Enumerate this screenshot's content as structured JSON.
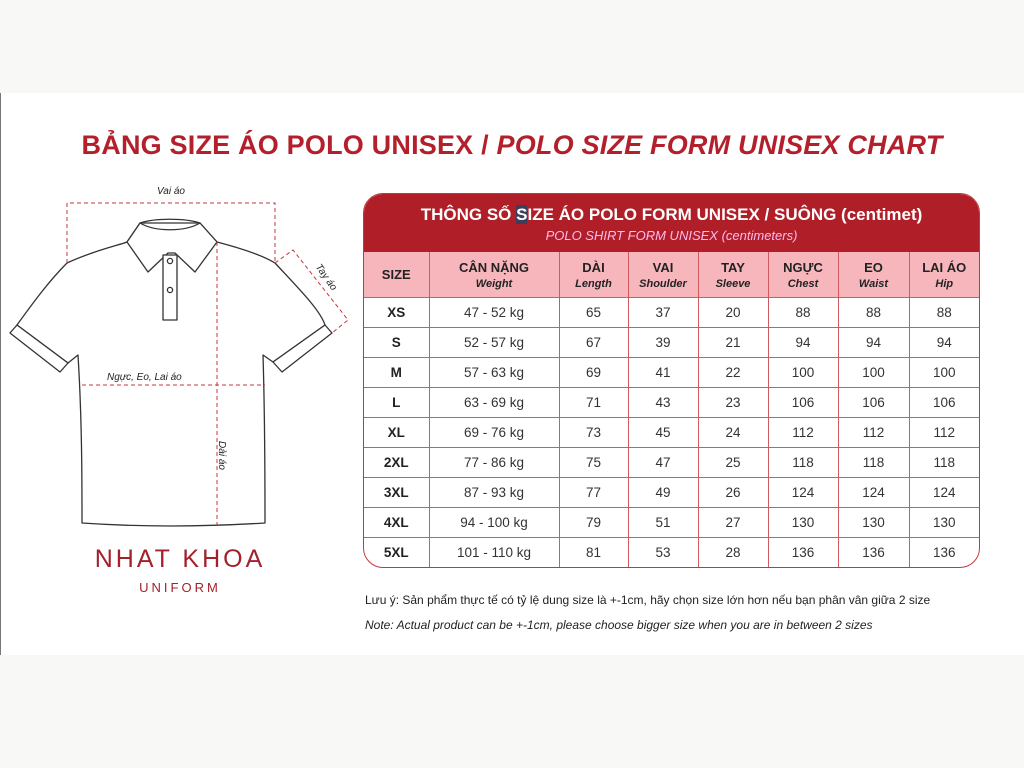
{
  "title": {
    "main": "BẢNG SIZE ÁO POLO UNISEX / ",
    "italic": "POLO SIZE FORM UNISEX CHART"
  },
  "diagram": {
    "labels": {
      "shoulder": "Vai áo",
      "sleeve": "Tay áo",
      "chest": "Ngực, Eo, Lai áo",
      "length": "Dài áo"
    },
    "dash_color": "#c0393f"
  },
  "logo": {
    "name": "NHAT KHOA",
    "sub": "UNIFORM"
  },
  "table": {
    "title_pre": "THÔNG SỐ ",
    "title_hl": "S",
    "title_post": "IZE ÁO POLO FORM UNISEX / SUÔNG (centimet)",
    "subtitle": "POLO SHIRT FORM UNISEX (centimeters)",
    "columns": [
      {
        "vi": "SIZE",
        "en": ""
      },
      {
        "vi": "CÂN NẶNG",
        "en": "Weight"
      },
      {
        "vi": "DÀI",
        "en": "Length"
      },
      {
        "vi": "VAI",
        "en": "Shoulder"
      },
      {
        "vi": "TAY",
        "en": "Sleeve"
      },
      {
        "vi": "NGỰC",
        "en": "Chest"
      },
      {
        "vi": "EO",
        "en": "Waist"
      },
      {
        "vi": "LAI ÁO",
        "en": "Hip"
      }
    ],
    "rows": [
      [
        "XS",
        "47 - 52 kg",
        "65",
        "37",
        "20",
        "88",
        "88",
        "88"
      ],
      [
        "S",
        "52 - 57 kg",
        "67",
        "39",
        "21",
        "94",
        "94",
        "94"
      ],
      [
        "M",
        "57 - 63 kg",
        "69",
        "41",
        "22",
        "100",
        "100",
        "100"
      ],
      [
        "L",
        "63 - 69 kg",
        "71",
        "43",
        "23",
        "106",
        "106",
        "106"
      ],
      [
        "XL",
        "69 - 76 kg",
        "73",
        "45",
        "24",
        "112",
        "112",
        "112"
      ],
      [
        "2XL",
        "77 - 86 kg",
        "75",
        "47",
        "25",
        "118",
        "118",
        "118"
      ],
      [
        "3XL",
        "87 - 93 kg",
        "77",
        "49",
        "26",
        "124",
        "124",
        "124"
      ],
      [
        "4XL",
        "94 - 100 kg",
        "79",
        "51",
        "27",
        "130",
        "130",
        "130"
      ],
      [
        "5XL",
        "101 - 110 kg",
        "81",
        "53",
        "28",
        "136",
        "136",
        "136"
      ]
    ],
    "colors": {
      "header": "#b01e28",
      "subheader": "#f6b6bc",
      "border": "#d05a60"
    }
  },
  "notes": {
    "vi": "Lưu ý: Sản phẩm thực tế có tỷ lệ dung size là +-1cm, hãy chọn size lớn hơn nếu bạn phân vân giữa 2 size",
    "en": "Note: Actual product can be +-1cm, please choose bigger size when you are in between 2 sizes"
  }
}
